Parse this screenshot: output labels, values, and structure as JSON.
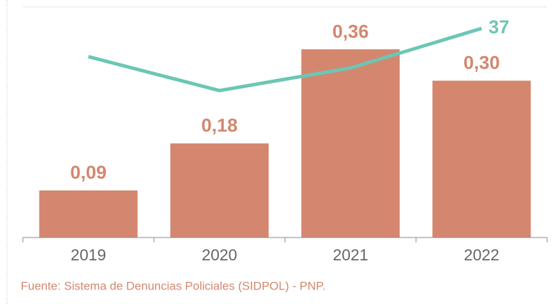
{
  "chart_data": {
    "type": "bar",
    "categories": [
      "2019",
      "2020",
      "2021",
      "2022"
    ],
    "series": [
      {
        "type": "bar",
        "color": "#d4876e",
        "values": [
          0.09,
          0.18,
          0.36,
          0.3
        ],
        "value_labels": [
          "0,09",
          "0,18",
          "0,36",
          "0,30"
        ]
      },
      {
        "type": "line",
        "axis": "y2",
        "color": "#6cc6b5",
        "values": [
          32,
          26,
          30,
          37
        ],
        "value_labels": [
          null,
          null,
          null,
          "37"
        ]
      }
    ],
    "ylim": [
      0,
      0.4
    ],
    "y2lim": [
      0,
      37
    ],
    "grid": false,
    "note": "Fuente: Sistema de Denuncias Policiales (SIDPOL) - PNP."
  }
}
